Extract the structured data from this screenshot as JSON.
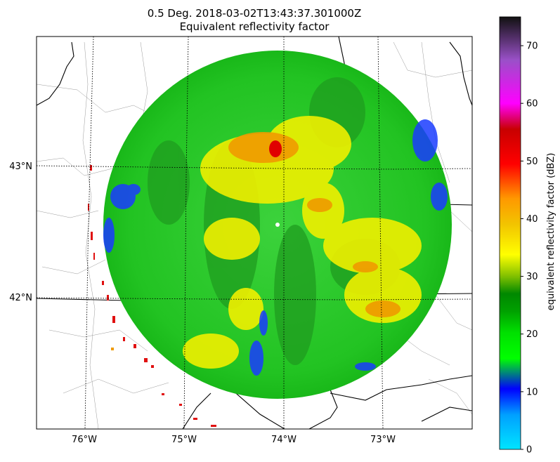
{
  "title": {
    "line1": "0.5 Deg. 2018-03-02T13:43:37.301000Z",
    "line2": "Equivalent reflectivity factor"
  },
  "map": {
    "lon_ticks": [
      "76°W",
      "75°W",
      "74°W",
      "73°W"
    ],
    "lat_ticks": [
      "43°N",
      "42°N"
    ],
    "radar_site_marker": "white-dot"
  },
  "colorbar": {
    "label": "equivalent reflectivity factor (dBZ)",
    "ticks": [
      "0",
      "10",
      "20",
      "30",
      "40",
      "50",
      "60",
      "70"
    ],
    "range": [
      0,
      75
    ],
    "colors": [
      "#00e5ff",
      "#00a0ff",
      "#0000ff",
      "#00ff00",
      "#00e000",
      "#00a000",
      "#008800",
      "#ffff00",
      "#f2c400",
      "#ff9800",
      "#ff0000",
      "#c80000",
      "#ff00ff",
      "#9a50c8",
      "#111111"
    ]
  }
}
